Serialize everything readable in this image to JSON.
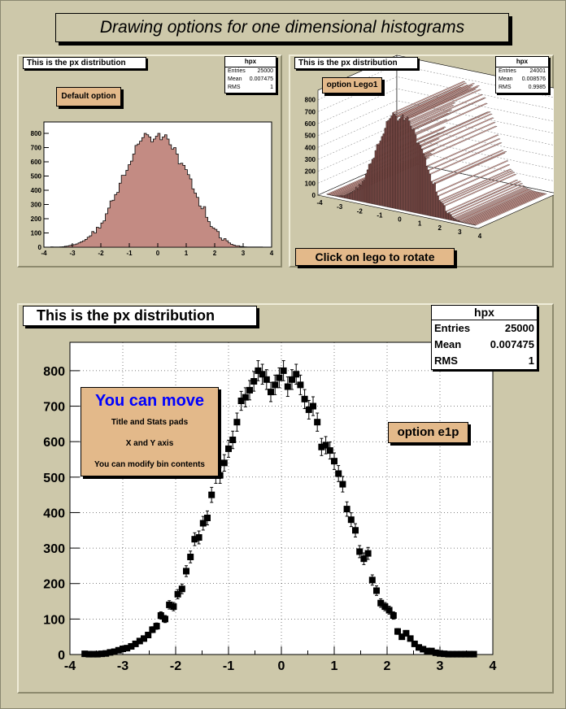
{
  "main_title": "Drawing options for one dimensional histograms",
  "colors": {
    "canvas": "#cdc8aa",
    "fill": "#c38b83",
    "frame_bg": "#ffffff",
    "orange": "#e3b98a",
    "blue": "#0000ff"
  },
  "pad1": {
    "title": "This is the px distribution",
    "stats": {
      "name": "hpx",
      "entries_label": "Entries",
      "entries": "25000",
      "mean_label": "Mean",
      "mean": "0.007475",
      "rms_label": "RMS",
      "rms": "1"
    },
    "label": "Default option"
  },
  "pad2": {
    "title": "This is the px distribution",
    "stats": {
      "name": "hpx",
      "entries_label": "Entries",
      "entries": "24001",
      "mean_label": "Mean",
      "mean": "0.008576",
      "rms_label": "RMS",
      "rms": "0.9985"
    },
    "label": "option Lego1",
    "rotate_label": "Click on lego to rotate"
  },
  "pad3": {
    "title": "This is the px distribution",
    "stats": {
      "name": "hpx",
      "entries_label": "Entries",
      "entries": "25000",
      "mean_label": "Mean",
      "mean": "0.007475",
      "rms_label": "RMS",
      "rms": "1"
    },
    "label": "option e1p",
    "note_title": "You can move",
    "note_line1": "Title and Stats pads",
    "note_line2": "X and Y axis",
    "note_line3": "You can modify bin contents"
  },
  "chart_data": {
    "type": "bar",
    "xlim": [
      -4,
      4
    ],
    "ylim": [
      0,
      880
    ],
    "x_ticks": [
      "-4",
      "-3",
      "-2",
      "-1",
      "0",
      "1",
      "2",
      "3",
      "4"
    ],
    "y_ticks": [
      "0",
      "100",
      "200",
      "300",
      "400",
      "500",
      "600",
      "700",
      "800"
    ],
    "x": [
      -3.72,
      -3.64,
      -3.56,
      -3.48,
      -3.4,
      -3.32,
      -3.24,
      -3.16,
      -3.08,
      -3.0,
      -2.92,
      -2.84,
      -2.76,
      -2.68,
      -2.6,
      -2.52,
      -2.44,
      -2.36,
      -2.28,
      -2.2,
      -2.12,
      -2.04,
      -1.96,
      -1.88,
      -1.8,
      -1.72,
      -1.64,
      -1.56,
      -1.48,
      -1.4,
      -1.32,
      -1.24,
      -1.16,
      -1.08,
      -1.0,
      -0.92,
      -0.84,
      -0.76,
      -0.68,
      -0.6,
      -0.52,
      -0.44,
      -0.36,
      -0.28,
      -0.2,
      -0.12,
      -0.04,
      0.04,
      0.12,
      0.2,
      0.28,
      0.36,
      0.44,
      0.52,
      0.6,
      0.68,
      0.76,
      0.84,
      0.92,
      1.0,
      1.08,
      1.16,
      1.24,
      1.32,
      1.4,
      1.48,
      1.56,
      1.64,
      1.72,
      1.8,
      1.88,
      1.96,
      2.04,
      2.12,
      2.2,
      2.28,
      2.36,
      2.44,
      2.52,
      2.6,
      2.68,
      2.76,
      2.84,
      2.92,
      3.0,
      3.08,
      3.16,
      3.24,
      3.32,
      3.4,
      3.48,
      3.56,
      3.64
    ],
    "values": [
      2,
      1,
      1,
      1,
      2,
      3,
      6,
      8,
      12,
      16,
      18,
      23,
      30,
      38,
      45,
      55,
      70,
      80,
      110,
      100,
      140,
      135,
      170,
      185,
      235,
      275,
      325,
      330,
      370,
      385,
      450,
      505,
      505,
      540,
      580,
      605,
      655,
      715,
      725,
      745,
      770,
      800,
      790,
      775,
      740,
      760,
      780,
      800,
      755,
      775,
      790,
      760,
      720,
      690,
      700,
      655,
      585,
      590,
      575,
      545,
      510,
      480,
      410,
      380,
      350,
      290,
      270,
      285,
      210,
      180,
      145,
      135,
      125,
      110,
      65,
      50,
      60,
      45,
      30,
      20,
      15,
      10,
      10,
      5,
      3,
      2,
      1,
      1,
      1,
      1,
      1,
      1,
      1
    ]
  }
}
